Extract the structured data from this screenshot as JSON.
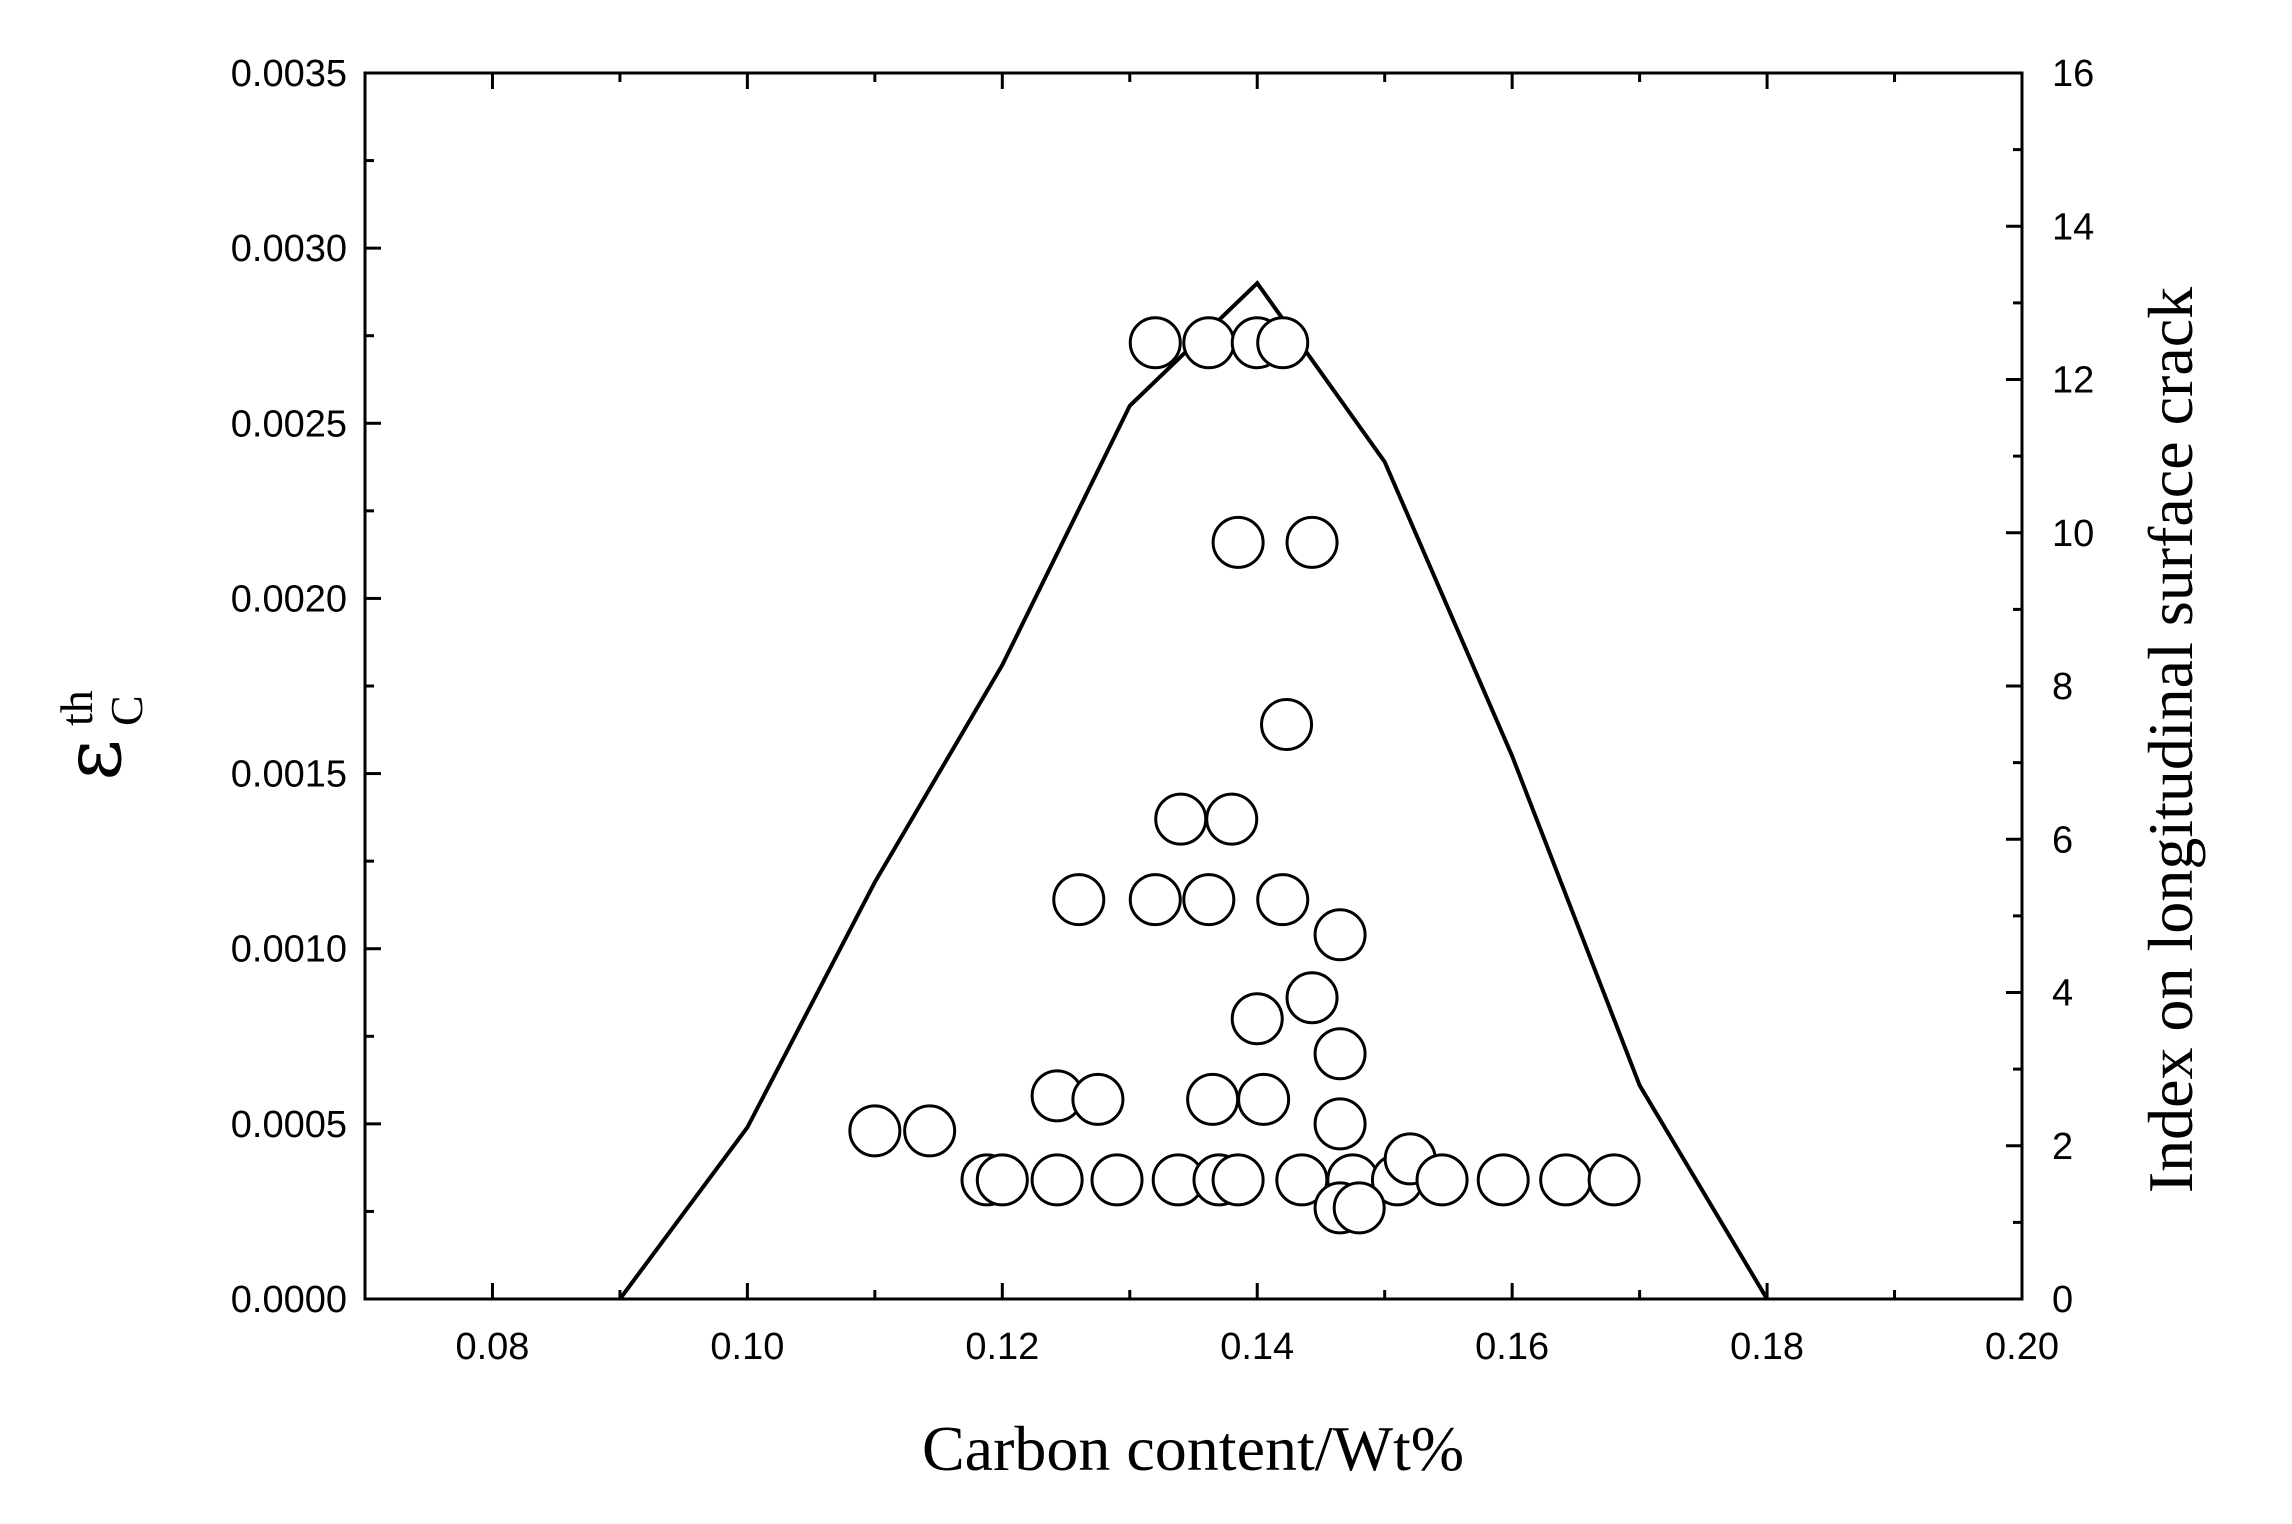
{
  "chart_data": {
    "type": "scatter",
    "title": "",
    "xlabel": "Carbon content/Wt%",
    "ylabel_symbol": "ε",
    "ylabel_sub": "C",
    "ylabel_sup": "th",
    "y2label": "Index on longitudinal surface crack",
    "xlim": [
      0.07,
      0.2
    ],
    "ylim": [
      0,
      0.0035
    ],
    "y2lim": [
      0,
      16
    ],
    "x_ticks": [
      "0.08",
      "0.10",
      "0.12",
      "0.14",
      "0.16",
      "0.18",
      "0.20"
    ],
    "y_ticks": [
      "0.0000",
      "0.0005",
      "0.0010",
      "0.0015",
      "0.0020",
      "0.0025",
      "0.0030",
      "0.0035"
    ],
    "y2_ticks": [
      "0",
      "2",
      "4",
      "6",
      "8",
      "10",
      "12",
      "14",
      "16"
    ],
    "grid": false,
    "series": [
      {
        "kind": "line",
        "axis": "left",
        "color": "#000000",
        "x": [
          0.09,
          0.1,
          0.11,
          0.12,
          0.13,
          0.14,
          0.15,
          0.16,
          0.17,
          0.18
        ],
        "y": [
          0.0,
          0.00049,
          0.00119,
          0.00181,
          0.00255,
          0.0029,
          0.00239,
          0.00155,
          0.00061,
          0.0
        ]
      },
      {
        "kind": "scatter",
        "axis": "left",
        "marker": "open-circle",
        "x": [
          0.132,
          0.1362,
          0.14,
          0.142,
          0.1385,
          0.1443,
          0.1423,
          0.134,
          0.138,
          0.126,
          0.132,
          0.1362,
          0.142,
          0.1465,
          0.1443,
          0.14,
          0.1465,
          0.1243,
          0.1275,
          0.1365,
          0.1405,
          0.1465,
          0.11,
          0.1143,
          0.1188,
          0.12,
          0.1243,
          0.129,
          0.1338,
          0.137,
          0.1385,
          0.1435,
          0.1475,
          0.151,
          0.152,
          0.1545,
          0.1593,
          0.1642,
          0.168,
          0.1465,
          0.148
        ],
        "y": [
          0.00273,
          0.00273,
          0.00273,
          0.00273,
          0.00216,
          0.00216,
          0.00164,
          0.00137,
          0.00137,
          0.00114,
          0.00114,
          0.00114,
          0.00114,
          0.00104,
          0.00086,
          0.0008,
          0.0007,
          0.00058,
          0.00057,
          0.00057,
          0.00057,
          0.0005,
          0.00048,
          0.00048,
          0.00034,
          0.00034,
          0.00034,
          0.00034,
          0.00034,
          0.00034,
          0.00034,
          0.00034,
          0.00034,
          0.00034,
          0.0004,
          0.00034,
          0.00034,
          0.00034,
          0.00034,
          0.00026,
          0.00026
        ]
      }
    ]
  }
}
